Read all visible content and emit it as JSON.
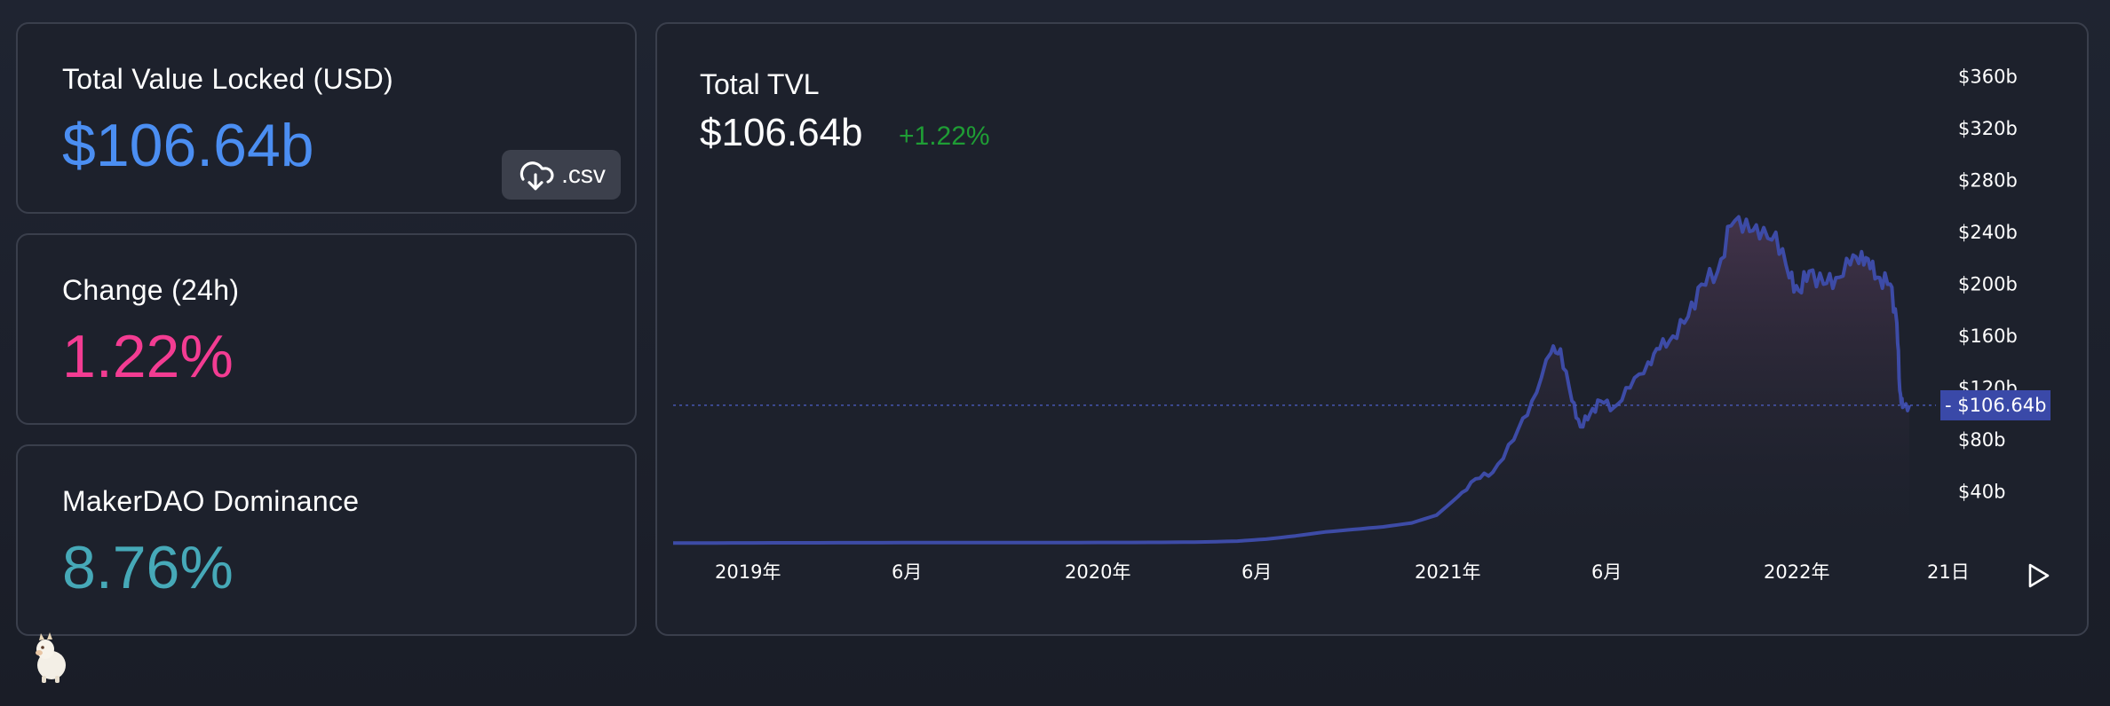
{
  "stats": {
    "tvl": {
      "title": "Total Value Locked (USD)",
      "value": "$106.64b",
      "color": "#4b8ef2"
    },
    "change": {
      "title": "Change (24h)",
      "value": "1.22%",
      "color": "#f33c92"
    },
    "dominance": {
      "title": "MakerDAO Dominance",
      "value": "8.76%",
      "color": "#46a9b8"
    }
  },
  "csv_button": {
    "label": ".csv",
    "icon": "cloud-download-icon"
  },
  "chart_header": {
    "title": "Total TVL",
    "value": "$106.64b",
    "change": "+1.22%",
    "change_color": "#1f9d35"
  },
  "colors": {
    "line": "#3d4ba6",
    "area_top": "#47354e",
    "price_tag": "#3a49a8"
  },
  "chart_data": {
    "type": "area",
    "title": "Total TVL",
    "xlabel": "",
    "ylabel": "",
    "y_unit": "USD billions",
    "ylim": [
      0,
      360
    ],
    "y_ticks": [
      {
        "value": 360,
        "label": "$360b"
      },
      {
        "value": 320,
        "label": "$320b"
      },
      {
        "value": 280,
        "label": "$280b"
      },
      {
        "value": 240,
        "label": "$240b"
      },
      {
        "value": 200,
        "label": "$200b"
      },
      {
        "value": 160,
        "label": "$160b"
      },
      {
        "value": 120,
        "label": "$120b"
      },
      {
        "value": 80,
        "label": "$80b"
      },
      {
        "value": 40,
        "label": "$40b"
      }
    ],
    "x_ticks": [
      {
        "date": "2019-01-01",
        "label": "2019年"
      },
      {
        "date": "2019-06-01",
        "label": "6月"
      },
      {
        "date": "2020-01-01",
        "label": "2020年"
      },
      {
        "date": "2020-06-01",
        "label": "6月"
      },
      {
        "date": "2021-01-01",
        "label": "2021年"
      },
      {
        "date": "2021-06-01",
        "label": "6月"
      },
      {
        "date": "2022-01-01",
        "label": "2022年"
      },
      {
        "date": "2022-05-21",
        "label": "21日"
      }
    ],
    "current_value": {
      "value": 106.64,
      "label": "$106.64b"
    },
    "grid": false,
    "series": [
      {
        "x": [
          "2018-11-01",
          "2019-01-01",
          "2019-04-01",
          "2019-07-01",
          "2019-10-01",
          "2020-01-01",
          "2020-03-15",
          "2020-05-01",
          "2020-06-15",
          "2020-07-15",
          "2020-08-15",
          "2020-09-15",
          "2020-10-15",
          "2020-11-15",
          "2020-12-15",
          "2021-01-10",
          "2021-02-01",
          "2021-02-20",
          "2021-03-10",
          "2021-04-01",
          "2021-04-20",
          "2021-05-10",
          "2021-05-20",
          "2021-06-01",
          "2021-06-10",
          "2021-06-20",
          "2021-07-01",
          "2021-07-15",
          "2021-08-01",
          "2021-08-20",
          "2021-09-01",
          "2021-09-15",
          "2021-10-01",
          "2021-10-15",
          "2021-11-01",
          "2021-11-15",
          "2021-12-01",
          "2021-12-15",
          "2022-01-01",
          "2022-01-15",
          "2022-01-25",
          "2022-02-05",
          "2022-02-20",
          "2022-03-05",
          "2022-03-20",
          "2022-04-01",
          "2022-04-10",
          "2022-04-20",
          "2022-05-01",
          "2022-05-08",
          "2022-05-11",
          "2022-05-14",
          "2022-05-21"
        ],
        "values": [
          0.5,
          0.6,
          0.7,
          0.8,
          0.8,
          0.9,
          1,
          1.2,
          2,
          3.5,
          6,
          9,
          11,
          13,
          16,
          22,
          36,
          50,
          55,
          80,
          110,
          147,
          150,
          110,
          90,
          100,
          110,
          105,
          120,
          140,
          150,
          160,
          175,
          200,
          210,
          245,
          250,
          235,
          240,
          205,
          195,
          210,
          200,
          205,
          215,
          225,
          212,
          205,
          200,
          170,
          118,
          105,
          106.64
        ]
      }
    ]
  }
}
